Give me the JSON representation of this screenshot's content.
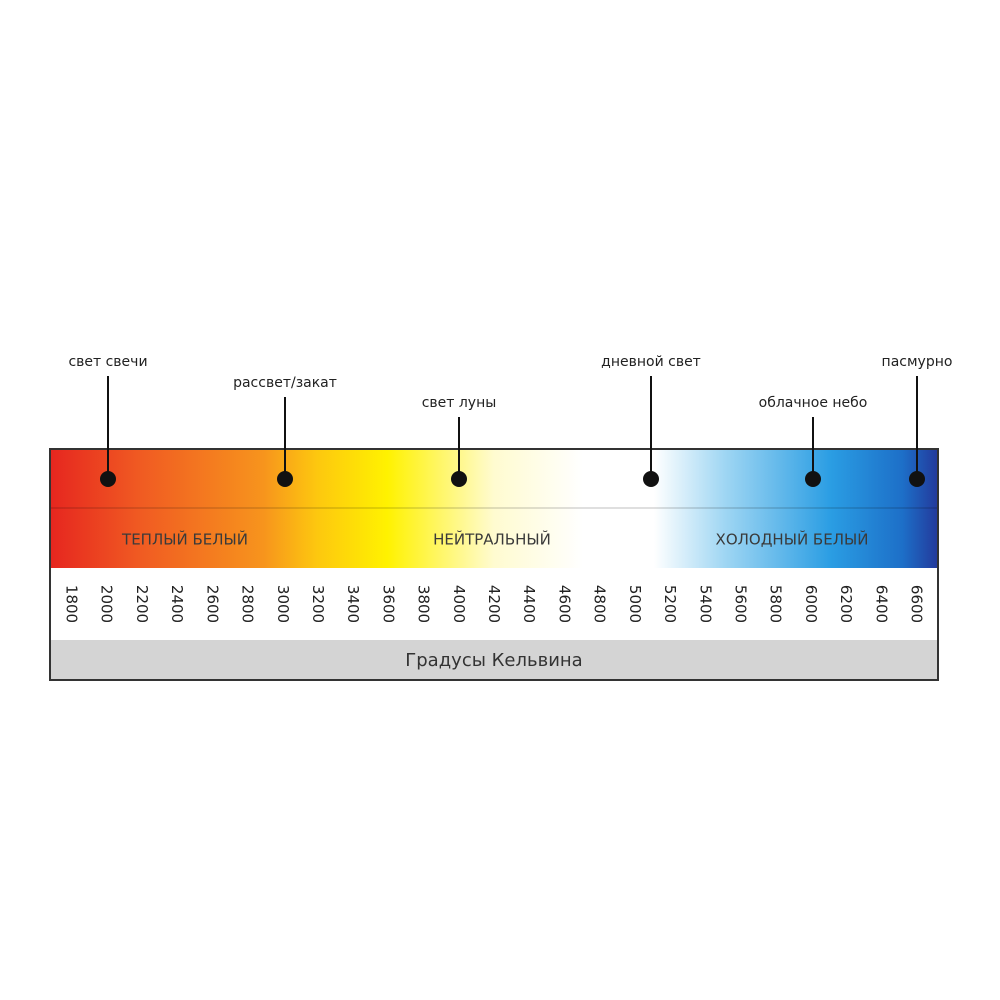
{
  "markers": [
    {
      "label": "свет свечи"
    },
    {
      "label": "рассвет/закат"
    },
    {
      "label": "свет луны"
    },
    {
      "label": "дневной свет"
    },
    {
      "label": "облачное небо"
    },
    {
      "label": "пасмурно"
    }
  ],
  "zones": [
    "ТЕПЛЫЙ БЕЛЫЙ",
    "НЕЙТРАЛЬНЫЙ",
    "ХОЛОДНЫЙ БЕЛЫЙ"
  ],
  "ticks": [
    1800,
    2000,
    2200,
    2400,
    2600,
    2800,
    3000,
    3200,
    3400,
    3600,
    3800,
    4000,
    4200,
    4400,
    4600,
    4800,
    5000,
    5200,
    5400,
    5600,
    5800,
    6000,
    6200,
    6400,
    6600
  ],
  "axis_title": "Градусы Кельвина"
}
